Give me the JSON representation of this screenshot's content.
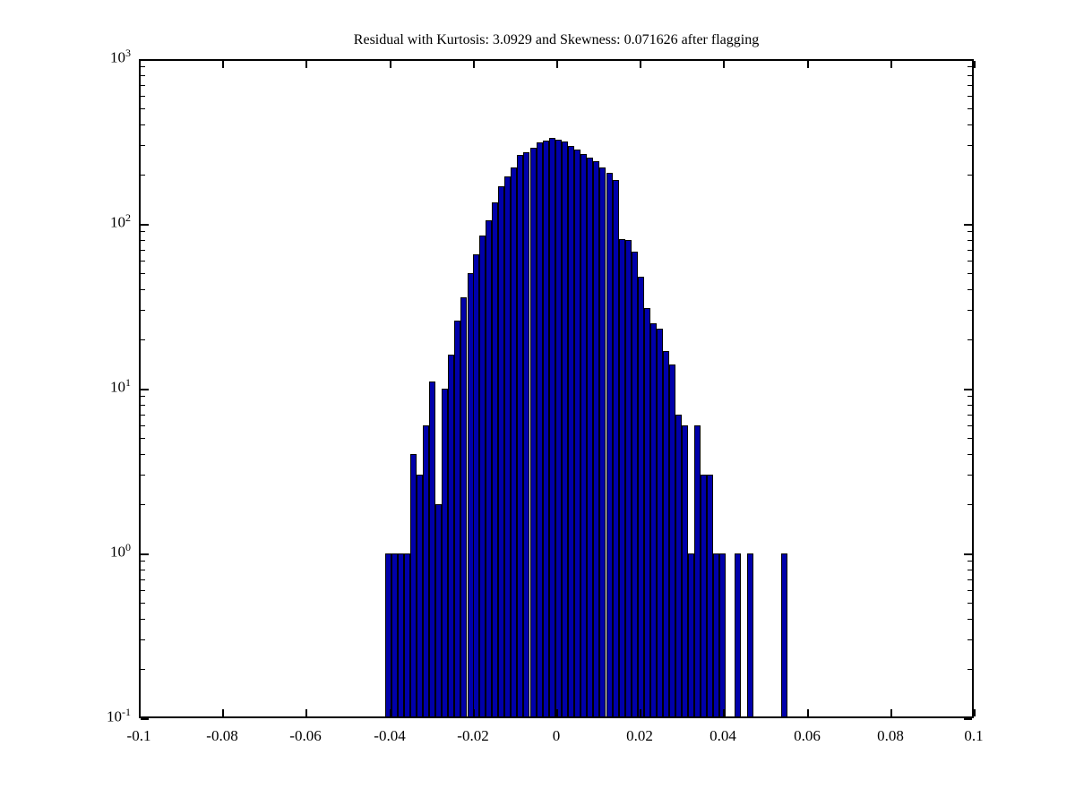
{
  "figure": {
    "background": "#ffffff",
    "title": "Residual with Kurtosis: 3.0929 and Skewness: 0.071626 after flagging"
  },
  "chart_data": {
    "type": "bar",
    "subtype": "histogram-log-y",
    "title": "Residual with Kurtosis: 3.0929 and Skewness: 0.071626 after flagging",
    "xlabel": "",
    "ylabel": "",
    "legend": "none",
    "grid": "off",
    "xlim": [
      -0.1,
      0.1
    ],
    "yscale": "log",
    "ylim": [
      0.1,
      1000
    ],
    "bin_width": 0.0015,
    "bar_color": "#0000AA",
    "bar_edge_color": "#000000",
    "axis_color": "#000000",
    "x_ticks": [
      {
        "value": -0.1,
        "label": "-0.1"
      },
      {
        "value": -0.08,
        "label": "-0.08"
      },
      {
        "value": -0.06,
        "label": "-0.06"
      },
      {
        "value": -0.04,
        "label": "-0.04"
      },
      {
        "value": -0.02,
        "label": "-0.02"
      },
      {
        "value": 0,
        "label": "0"
      },
      {
        "value": 0.02,
        "label": "0.02"
      },
      {
        "value": 0.04,
        "label": "0.04"
      },
      {
        "value": 0.06,
        "label": "0.06"
      },
      {
        "value": 0.08,
        "label": "0.08"
      },
      {
        "value": 0.1,
        "label": "0.1"
      }
    ],
    "y_ticks": [
      {
        "exponent": 3,
        "base": "10",
        "exp_label": "3"
      },
      {
        "exponent": 2,
        "base": "10",
        "exp_label": "2"
      },
      {
        "exponent": 1,
        "base": "10",
        "exp_label": "1"
      },
      {
        "exponent": 0,
        "base": "10",
        "exp_label": "0"
      },
      {
        "exponent": -1,
        "base": "10",
        "exp_label": "-1"
      }
    ],
    "y_minor_multiples": [
      2,
      3,
      4,
      5,
      6,
      7,
      8,
      9
    ],
    "bars": [
      [
        -0.0403,
        1
      ],
      [
        -0.0388,
        1
      ],
      [
        -0.0373,
        1
      ],
      [
        -0.0358,
        1
      ],
      [
        -0.0343,
        4
      ],
      [
        -0.0327,
        3
      ],
      [
        -0.0312,
        6
      ],
      [
        -0.0297,
        11
      ],
      [
        -0.0282,
        2
      ],
      [
        -0.0267,
        10
      ],
      [
        -0.0252,
        16
      ],
      [
        -0.0237,
        26
      ],
      [
        -0.0222,
        36
      ],
      [
        -0.0206,
        50
      ],
      [
        -0.0191,
        65
      ],
      [
        -0.0176,
        85
      ],
      [
        -0.0161,
        105
      ],
      [
        -0.0146,
        135
      ],
      [
        -0.0131,
        170
      ],
      [
        -0.0116,
        195
      ],
      [
        -0.0101,
        221
      ],
      [
        -0.0086,
        262
      ],
      [
        -0.0071,
        271
      ],
      [
        -0.0055,
        288
      ],
      [
        -0.004,
        312
      ],
      [
        -0.0025,
        321
      ],
      [
        -0.001,
        331
      ],
      [
        0.0005,
        324
      ],
      [
        0.002,
        317
      ],
      [
        0.0036,
        297
      ],
      [
        0.0051,
        282
      ],
      [
        0.0066,
        266
      ],
      [
        0.0081,
        252
      ],
      [
        0.0096,
        240
      ],
      [
        0.0111,
        221
      ],
      [
        0.0127,
        203
      ],
      [
        0.0142,
        185
      ],
      [
        0.0157,
        81
      ],
      [
        0.0172,
        80
      ],
      [
        0.0187,
        68
      ],
      [
        0.0202,
        48
      ],
      [
        0.0218,
        31
      ],
      [
        0.0233,
        25
      ],
      [
        0.0248,
        23
      ],
      [
        0.0263,
        17
      ],
      [
        0.0278,
        14
      ],
      [
        0.0293,
        7
      ],
      [
        0.0308,
        6
      ],
      [
        0.0323,
        1
      ],
      [
        0.0338,
        6
      ],
      [
        0.0353,
        3
      ],
      [
        0.0369,
        3
      ],
      [
        0.0384,
        1
      ],
      [
        0.0399,
        1
      ],
      [
        0.0435,
        1
      ],
      [
        0.0465,
        1
      ],
      [
        0.0547,
        1
      ]
    ]
  }
}
